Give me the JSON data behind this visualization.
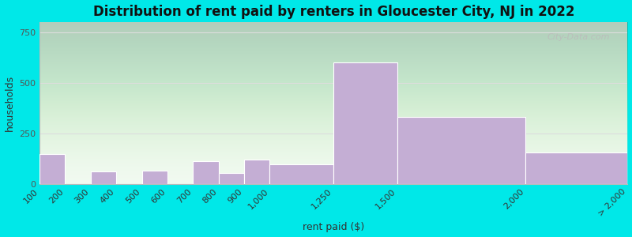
{
  "title": "Distribution of rent paid by renters in Gloucester City, NJ in 2022",
  "xlabel": "rent paid ($)",
  "ylabel": "households",
  "bar_color": "#c4aed4",
  "bar_edge_color": "#ffffff",
  "background_color_top": "#dcefd8",
  "background_color_bottom": "#f5fef5",
  "outer_bg": "#00e8e8",
  "bin_edges": [
    100,
    200,
    300,
    400,
    500,
    600,
    700,
    800,
    900,
    1000,
    1250,
    1500,
    2000,
    2400
  ],
  "values": [
    145,
    0,
    60,
    0,
    65,
    0,
    110,
    55,
    120,
    95,
    600,
    330,
    155
  ],
  "tick_labels": [
    "100",
    "200",
    "300",
    "400",
    "500",
    "600",
    "700",
    "800",
    "900",
    "1,000",
    "1,250",
    "1,500",
    "2,000",
    "> 2,000"
  ],
  "tick_positions": [
    100,
    200,
    300,
    400,
    500,
    600,
    700,
    800,
    900,
    1000,
    1250,
    1500,
    2000,
    2400
  ],
  "ylim": [
    0,
    800
  ],
  "yticks": [
    0,
    250,
    500,
    750
  ],
  "xlim": [
    100,
    2400
  ],
  "title_fontsize": 12,
  "axis_fontsize": 9,
  "tick_fontsize": 8,
  "watermark": "City-Data.com"
}
